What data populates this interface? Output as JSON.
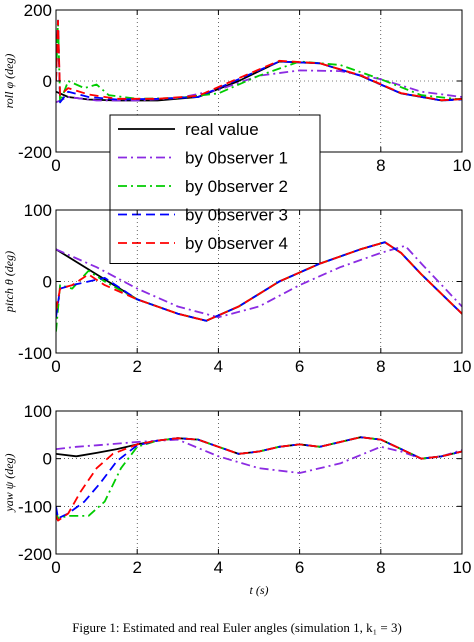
{
  "caption": "Figure 1: Estimated and real Euler angles (simulation 1, k₁ = 3)",
  "chart_data": [
    {
      "type": "line",
      "ylabel": "roll φ (deg)",
      "xlabel": "",
      "xlim": [
        0,
        10
      ],
      "ylim": [
        -200,
        200
      ],
      "xticks": [
        0,
        2,
        4,
        6,
        8,
        10
      ],
      "yticks": [
        -200,
        0,
        200
      ],
      "grid": true,
      "legend": {
        "placement": "center-left",
        "entries": [
          "real value",
          "by 0bserver 1",
          "by 0bserver 2",
          "by 0bserver 3",
          "by 0bserver 4"
        ]
      },
      "series": [
        {
          "name": "real value",
          "color": "#000000",
          "dash": "solid",
          "x": [
            0,
            0.3,
            0.8,
            1.5,
            2.5,
            3.5,
            4.5,
            5.5,
            6.5,
            7.5,
            8.5,
            9.5,
            10
          ],
          "y": [
            -30,
            -45,
            -52,
            -55,
            -55,
            -45,
            0,
            55,
            50,
            15,
            -35,
            -55,
            -50
          ]
        },
        {
          "name": "by 0bserver 1",
          "color": "#8b2be2",
          "dash": "dashdot",
          "x": [
            0,
            0.3,
            1,
            2,
            3,
            4,
            5,
            6,
            7,
            8,
            9,
            10
          ],
          "y": [
            -60,
            -45,
            -55,
            -55,
            -48,
            -25,
            15,
            30,
            28,
            5,
            -30,
            -45
          ]
        },
        {
          "name": "by 0bserver 2",
          "color": "#00cc00",
          "dash": "dashdot",
          "x": [
            0,
            0.05,
            0.1,
            0.3,
            0.7,
            1.0,
            1.3,
            2,
            3,
            4,
            5,
            6,
            7,
            8,
            9,
            10
          ],
          "y": [
            0,
            170,
            -60,
            0,
            -20,
            -10,
            -40,
            -50,
            -48,
            -35,
            15,
            55,
            45,
            5,
            -40,
            -52
          ]
        },
        {
          "name": "by 0bserver 3",
          "color": "#0000ff",
          "dash": "dash",
          "x": [
            0,
            0.05,
            0.1,
            0.3,
            0.8,
            1.5,
            2.5,
            3.5,
            4.5,
            5.5,
            6.5,
            7.5,
            8.5,
            9.5,
            10
          ],
          "y": [
            0,
            170,
            -60,
            -30,
            -45,
            -52,
            -50,
            -45,
            5,
            55,
            50,
            15,
            -35,
            -55,
            -52
          ]
        },
        {
          "name": "by 0bserver 4",
          "color": "#ff0000",
          "dash": "dash",
          "x": [
            0,
            0.05,
            0.1,
            0.3,
            0.8,
            1.5,
            2.5,
            3.5,
            4.5,
            5.5,
            6.5,
            7.5,
            8.5,
            9.5,
            10
          ],
          "y": [
            0,
            170,
            -40,
            -20,
            -38,
            -50,
            -50,
            -42,
            8,
            57,
            50,
            16,
            -34,
            -54,
            -51
          ]
        }
      ]
    },
    {
      "type": "line",
      "ylabel": "pitch θ (deg)",
      "xlabel": "",
      "xlim": [
        0,
        10
      ],
      "ylim": [
        -100,
        100
      ],
      "xticks": [
        0,
        2,
        4,
        6,
        8,
        10
      ],
      "yticks": [
        -100,
        0,
        100
      ],
      "grid": true,
      "series": [
        {
          "name": "real value",
          "color": "#000000",
          "dash": "solid",
          "x": [
            0,
            1,
            2,
            3,
            3.7,
            4.5,
            5.5,
            6.5,
            7.5,
            8.1,
            8.5,
            9,
            10
          ],
          "y": [
            45,
            10,
            -25,
            -45,
            -55,
            -35,
            0,
            25,
            45,
            55,
            40,
            10,
            -45
          ]
        },
        {
          "name": "by 0bserver 1",
          "color": "#8b2be2",
          "dash": "dashdot",
          "x": [
            0,
            0.4,
            1,
            2,
            3,
            4,
            5,
            6,
            7,
            8,
            8.6,
            9,
            10
          ],
          "y": [
            45,
            35,
            20,
            -10,
            -35,
            -50,
            -35,
            -5,
            20,
            40,
            50,
            25,
            -35
          ]
        },
        {
          "name": "by 0bserver 2",
          "color": "#00cc00",
          "dash": "dashdot",
          "x": [
            0,
            0.1,
            0.4,
            0.8,
            1.2,
            2,
            3,
            3.7,
            4.5,
            5.5,
            6.5,
            7.5,
            8.1,
            8.5,
            9,
            10
          ],
          "y": [
            -70,
            -5,
            -10,
            15,
            0,
            -25,
            -45,
            -55,
            -35,
            0,
            25,
            45,
            55,
            40,
            10,
            -45
          ]
        },
        {
          "name": "by 0bserver 3",
          "color": "#0000ff",
          "dash": "dash",
          "x": [
            0,
            0.1,
            0.4,
            0.8,
            1.2,
            2,
            3,
            3.7,
            4.5,
            5.5,
            6.5,
            7.5,
            8.1,
            8.5,
            9,
            10
          ],
          "y": [
            -50,
            -10,
            -5,
            0,
            5,
            -25,
            -45,
            -55,
            -35,
            0,
            25,
            45,
            55,
            40,
            10,
            -45
          ]
        },
        {
          "name": "by 0bserver 4",
          "color": "#ff0000",
          "dash": "dash",
          "x": [
            0,
            0.1,
            0.4,
            0.8,
            1.2,
            2,
            3,
            3.7,
            4.5,
            5.5,
            6.5,
            7.5,
            8.1,
            8.5,
            9,
            10
          ],
          "y": [
            -40,
            -10,
            -5,
            10,
            -5,
            -25,
            -45,
            -55,
            -35,
            0,
            25,
            45,
            55,
            40,
            10,
            -45
          ]
        }
      ]
    },
    {
      "type": "line",
      "ylabel": "yaw ψ (deg)",
      "xlabel": "t (s)",
      "xlim": [
        0,
        10
      ],
      "ylim": [
        -200,
        100
      ],
      "xticks": [
        0,
        2,
        4,
        6,
        8,
        10
      ],
      "yticks": [
        -200,
        -100,
        0,
        100
      ],
      "grid": true,
      "series": [
        {
          "name": "real value",
          "color": "#000000",
          "dash": "solid",
          "x": [
            0,
            0.5,
            1,
            1.5,
            2,
            2.5,
            3,
            3.5,
            4,
            4.5,
            5,
            5.5,
            6,
            6.5,
            7,
            7.5,
            8,
            8.5,
            9,
            9.5,
            10
          ],
          "y": [
            10,
            5,
            12,
            20,
            30,
            38,
            43,
            40,
            25,
            10,
            15,
            25,
            30,
            25,
            35,
            45,
            40,
            20,
            0,
            5,
            15
          ]
        },
        {
          "name": "by 0bserver 1",
          "color": "#8b2be2",
          "dash": "dashdot",
          "x": [
            0,
            0.5,
            1,
            2,
            3,
            4,
            5,
            6,
            7,
            8,
            8.5,
            9,
            9.5,
            10
          ],
          "y": [
            20,
            25,
            28,
            35,
            40,
            5,
            -20,
            -30,
            -10,
            25,
            15,
            0,
            5,
            18
          ]
        },
        {
          "name": "by 0bserver 2",
          "color": "#00cc00",
          "dash": "dashdot",
          "x": [
            0,
            0.05,
            0.3,
            0.8,
            1.2,
            1.6,
            2,
            2.5,
            3,
            3.5,
            4,
            4.5,
            5,
            5.5,
            6,
            6.5,
            7,
            7.5,
            8,
            8.5,
            9,
            9.5,
            10
          ],
          "y": [
            -110,
            -125,
            -120,
            -120,
            -90,
            -20,
            25,
            38,
            43,
            40,
            25,
            10,
            15,
            25,
            30,
            25,
            35,
            45,
            40,
            20,
            0,
            5,
            15
          ]
        },
        {
          "name": "by 0bserver 3",
          "color": "#0000ff",
          "dash": "dash",
          "x": [
            0,
            0.05,
            0.3,
            0.7,
            1.1,
            1.5,
            2,
            2.5,
            3,
            3.5,
            4,
            4.5,
            5,
            5.5,
            6,
            6.5,
            7,
            7.5,
            8,
            8.5,
            9,
            9.5,
            10
          ],
          "y": [
            -100,
            -125,
            -115,
            -90,
            -50,
            -5,
            28,
            38,
            43,
            40,
            25,
            10,
            15,
            25,
            30,
            25,
            35,
            45,
            40,
            20,
            0,
            5,
            15
          ]
        },
        {
          "name": "by 0bserver 4",
          "color": "#ff0000",
          "dash": "dash",
          "x": [
            0,
            0.05,
            0.3,
            0.6,
            1.0,
            1.4,
            2,
            2.5,
            3,
            3.5,
            4,
            4.5,
            5,
            5.5,
            6,
            6.5,
            7,
            7.5,
            8,
            8.5,
            9,
            9.5,
            10
          ],
          "y": [
            -120,
            -130,
            -115,
            -70,
            -20,
            10,
            30,
            38,
            43,
            40,
            25,
            10,
            15,
            25,
            30,
            25,
            35,
            45,
            40,
            20,
            0,
            5,
            15
          ]
        }
      ]
    }
  ]
}
